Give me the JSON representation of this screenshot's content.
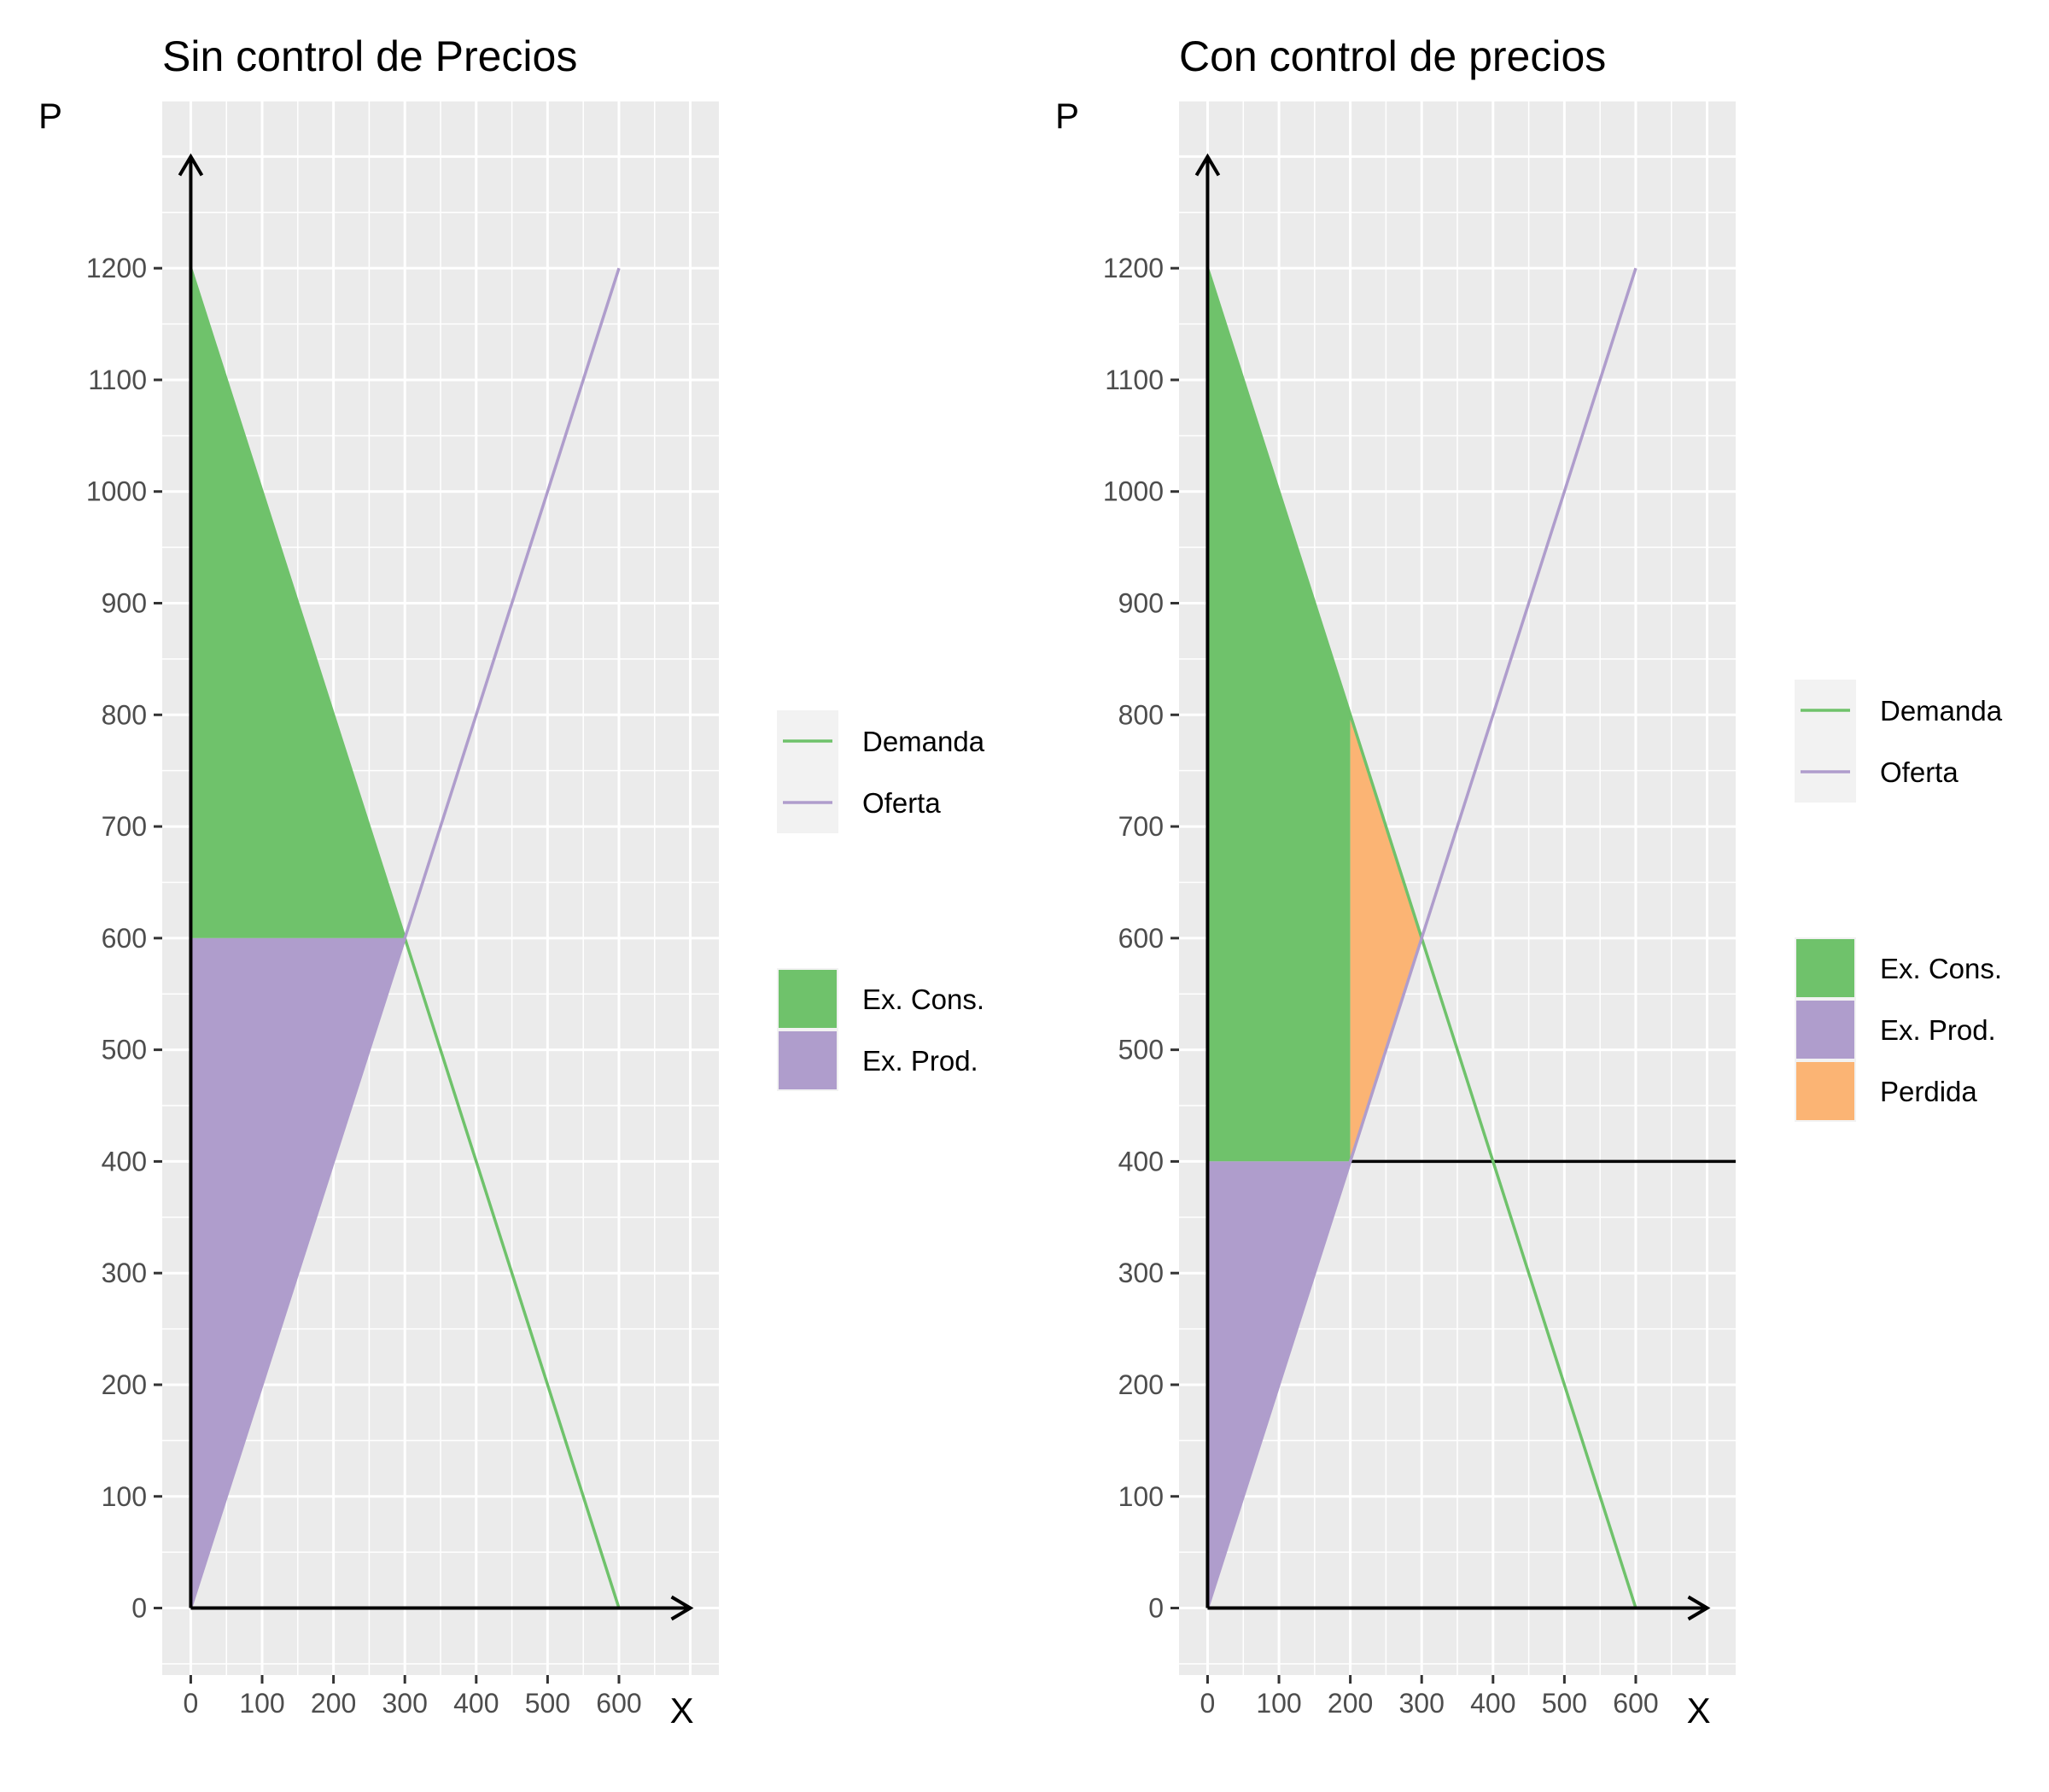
{
  "chart_data": [
    {
      "type": "area",
      "title": "Sin control de Precios",
      "xlabel": "X",
      "ylabel": "P",
      "xlim": [
        -40,
        740
      ],
      "ylim": [
        -60,
        1350
      ],
      "x_ticks": [
        0,
        100,
        200,
        300,
        400,
        500,
        600
      ],
      "y_ticks": [
        0,
        100,
        200,
        300,
        400,
        500,
        600,
        700,
        800,
        900,
        1000,
        1100,
        1200
      ],
      "grid": true,
      "axis_arrows": {
        "x_end": 700,
        "y_end": 1300
      },
      "series": [
        {
          "name": "Demanda",
          "color": "#6fc26b",
          "points": [
            [
              0,
              1200
            ],
            [
              600,
              0
            ]
          ]
        },
        {
          "name": "Oferta",
          "color": "#af9dcc",
          "points": [
            [
              0,
              0
            ],
            [
              600,
              1200
            ]
          ]
        }
      ],
      "areas": [
        {
          "name": "Ex. Cons.",
          "color": "#6fc26b",
          "points": [
            [
              0,
              1200
            ],
            [
              300,
              600
            ],
            [
              0,
              600
            ]
          ]
        },
        {
          "name": "Ex. Prod.",
          "color": "#af9dcc",
          "points": [
            [
              0,
              600
            ],
            [
              300,
              600
            ],
            [
              0,
              0
            ]
          ]
        }
      ],
      "hlines": [],
      "line_legend": [
        "Demanda",
        "Oferta"
      ],
      "fill_legend": [
        "Ex. Cons.",
        "Ex. Prod."
      ]
    },
    {
      "type": "area",
      "title": "Con control de precios",
      "xlabel": "X",
      "ylabel": "P",
      "xlim": [
        -40,
        740
      ],
      "ylim": [
        -60,
        1350
      ],
      "x_ticks": [
        0,
        100,
        200,
        300,
        400,
        500,
        600
      ],
      "y_ticks": [
        0,
        100,
        200,
        300,
        400,
        500,
        600,
        700,
        800,
        900,
        1000,
        1100,
        1200
      ],
      "grid": true,
      "axis_arrows": {
        "x_end": 700,
        "y_end": 1300
      },
      "series": [
        {
          "name": "Demanda",
          "color": "#6fc26b",
          "points": [
            [
              0,
              1200
            ],
            [
              600,
              0
            ]
          ]
        },
        {
          "name": "Oferta",
          "color": "#af9dcc",
          "points": [
            [
              0,
              0
            ],
            [
              600,
              1200
            ]
          ]
        }
      ],
      "areas": [
        {
          "name": "Ex. Cons.",
          "color": "#6fc26b",
          "points": [
            [
              0,
              1200
            ],
            [
              200,
              800
            ],
            [
              200,
              400
            ],
            [
              0,
              400
            ]
          ]
        },
        {
          "name": "Ex. Prod.",
          "color": "#af9dcc",
          "points": [
            [
              0,
              400
            ],
            [
              200,
              400
            ],
            [
              0,
              0
            ]
          ]
        },
        {
          "name": "Perdida",
          "color": "#fbb474",
          "points": [
            [
              200,
              800
            ],
            [
              300,
              600
            ],
            [
              200,
              400
            ]
          ]
        }
      ],
      "hlines": [
        {
          "y": 400,
          "x_from": 200,
          "color": "#000000"
        }
      ],
      "line_legend": [
        "Demanda",
        "Oferta"
      ],
      "fill_legend": [
        "Ex. Cons.",
        "Ex. Prod.",
        "Perdida"
      ]
    }
  ]
}
